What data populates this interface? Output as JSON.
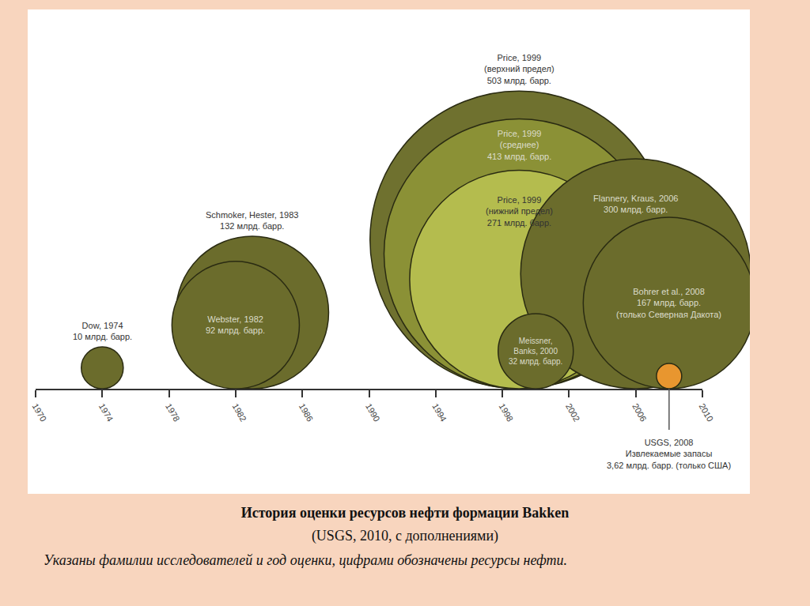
{
  "chart_data": {
    "type": "bubble",
    "title": "История оценки ресурсов нефти формации Bakken",
    "subtitle": "(USGS, 2010, с дополнениями)",
    "annotations": [
      "Указаны фамилии исследователей и год оценки, цифрами обозначены ресурсы нефти."
    ],
    "labels": [
      [
        "Dow, 1974"
      ],
      [
        "Schmoker, Hester, 1983"
      ],
      [
        "Webster, 1982"
      ],
      [
        "Price, 1999"
      ],
      [
        "Price, 1999"
      ],
      [
        "Price, 1999"
      ],
      [
        "Flannery, Kraus, 2006"
      ],
      [
        "Bohrer et al., 2008"
      ],
      [
        "Meissner,",
        "Banks, 2000"
      ],
      [
        "USGS, 2008"
      ]
    ],
    "notes": [
      null,
      null,
      null,
      "(верхний предел)",
      "(среднее)",
      "(нижний предел)",
      null,
      "(только Северная Дакота)",
      null,
      "Извлекаемые запасы"
    ],
    "x": [
      1974,
      1983,
      1982,
      1999,
      1999,
      1999,
      2006,
      2008,
      2000,
      2008
    ],
    "values": [
      10,
      132,
      92,
      503,
      413,
      271,
      300,
      167,
      32,
      3.62
    ],
    "value_labels": [
      "10 млрд. барр.",
      "132 млрд. барр.",
      "92 млрд. барр.",
      "503 млрд. барр.",
      "413 млрд. барр.",
      "271 млрд. барр.",
      "300 млрд. барр.",
      "167 млрд. барр.",
      "32 млрд. барр.",
      "3,62 млрд. барр. (только США)"
    ],
    "colors": [
      "#6b6c2c",
      "#6b6c2c",
      "#6b6c2c",
      "#6f712f",
      "#8b9136",
      "#b4bc4e",
      "#6b6c2c",
      "#6b6c2c",
      "#6b6c2c",
      "#e8962f"
    ],
    "xlim": [
      1970,
      2010
    ],
    "xticks": [
      1970,
      1974,
      1978,
      1982,
      1986,
      1990,
      1994,
      1998,
      2002,
      2006,
      2010
    ],
    "data_labels": true,
    "grid": false,
    "tick_labels": "x"
  }
}
